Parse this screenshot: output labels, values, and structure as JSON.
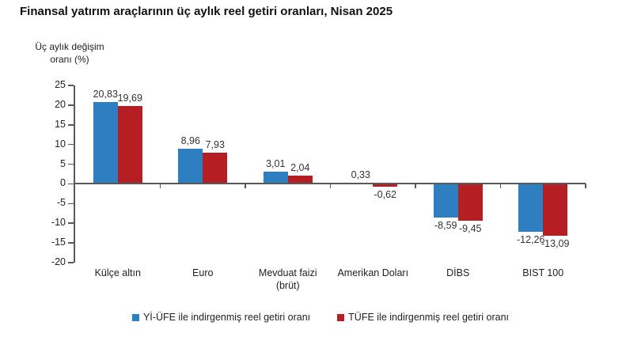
{
  "title": "Finansal yatırım araçlarının üç aylık reel getiri oranları, Nisan 2025",
  "y_axis": {
    "title_line1": "Üç aylık değişim",
    "title_line2": "oranı (%)",
    "tick_labels": [
      "25",
      "20",
      "15",
      "10",
      "5",
      "0",
      "-5",
      "-10",
      "-15",
      "-20"
    ]
  },
  "legend": [
    {
      "label": "Yİ-ÜFE ile indirgenmiş reel getiri oranı",
      "color": "#2E7FC2"
    },
    {
      "label": "TÜFE ile indirgenmiş reel getiri oranı",
      "color": "#B51F24"
    }
  ],
  "colors": {
    "series_blue": "#2E7FC2",
    "series_red": "#B51F24",
    "axis": "#595959",
    "text": "#222222"
  },
  "chart_data": {
    "type": "bar",
    "title": "Finansal yatırım araçlarının üç aylık reel getiri oranları, Nisan 2025",
    "xlabel": "",
    "ylabel": "Üç aylık değişim oranı (%)",
    "categories": [
      "Külçe altın",
      "Euro",
      "Mevduat faizi\n(brüt)",
      "Amerikan Doları",
      "DİBS",
      "BIST 100"
    ],
    "series": [
      {
        "name": "Yİ-ÜFE ile indirgenmiş reel getiri oranı",
        "color": "#2E7FC2",
        "values": [
          20.83,
          8.96,
          3.01,
          0.33,
          -8.59,
          -12.26
        ],
        "labels": [
          "20,83",
          "8,96",
          "3,01",
          "0,33",
          "-8,59",
          "-12,26"
        ]
      },
      {
        "name": "TÜFE ile indirgenmiş reel getiri oranı",
        "color": "#B51F24",
        "values": [
          19.69,
          7.93,
          2.04,
          -0.62,
          -9.45,
          -13.09
        ],
        "labels": [
          "19,69",
          "7,93",
          "2,04",
          "-0,62",
          "-9,45",
          "-13,09"
        ]
      }
    ],
    "ylim": [
      -20,
      25
    ],
    "ytick_step": 5,
    "grid": false,
    "legend_position": "bottom"
  }
}
